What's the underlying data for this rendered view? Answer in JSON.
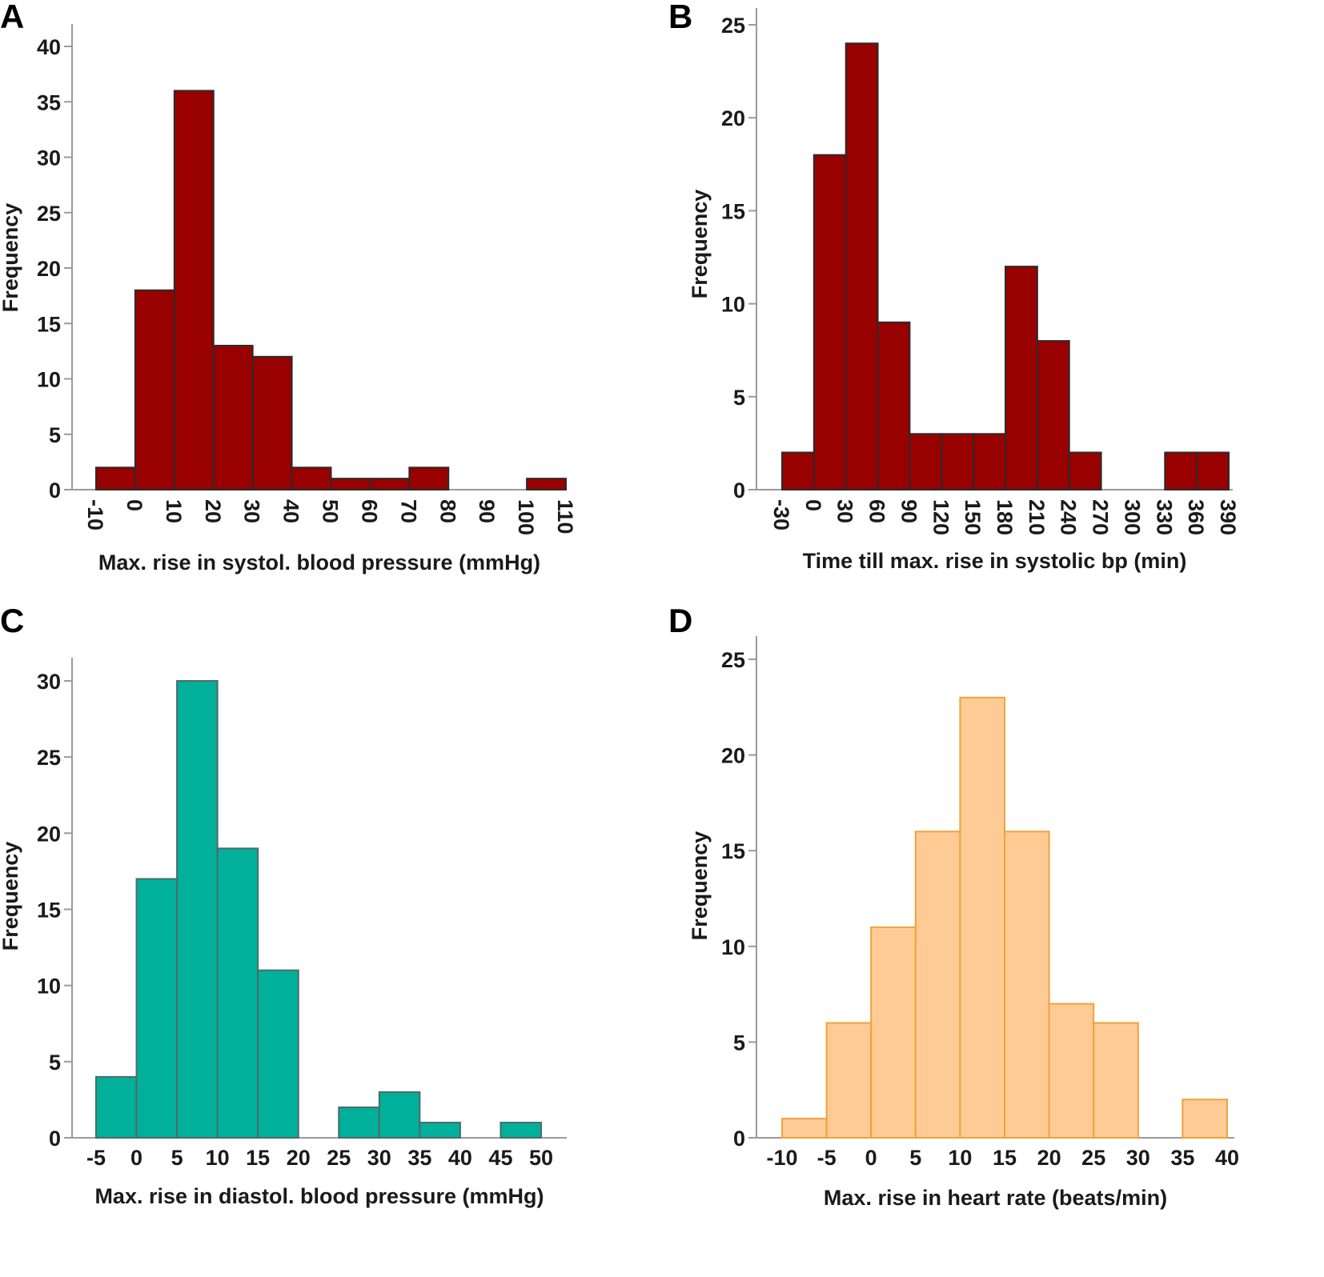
{
  "chart_data": [
    {
      "panel": "A",
      "type": "bar",
      "histogram": true,
      "xlabel": "Max. rise in systol. blood pressure (mmHg)",
      "ylabel": "Frequency",
      "x_ticks": [
        "-10",
        "0",
        "10",
        "20",
        "30",
        "40",
        "50",
        "60",
        "70",
        "80",
        "90",
        "100",
        "110"
      ],
      "x_tick_values": [
        -10,
        0,
        10,
        20,
        30,
        40,
        50,
        60,
        70,
        80,
        90,
        100,
        110
      ],
      "x_tick_rotated": true,
      "y_ticks": [
        0,
        5,
        10,
        15,
        20,
        25,
        30,
        35,
        40
      ],
      "xlim": [
        -10,
        110
      ],
      "ylim": [
        0,
        40
      ],
      "bins": [
        {
          "start": -10,
          "end": 0,
          "value": 2
        },
        {
          "start": 0,
          "end": 10,
          "value": 18
        },
        {
          "start": 10,
          "end": 20,
          "value": 36
        },
        {
          "start": 20,
          "end": 30,
          "value": 13
        },
        {
          "start": 30,
          "end": 40,
          "value": 12
        },
        {
          "start": 40,
          "end": 50,
          "value": 2
        },
        {
          "start": 50,
          "end": 60,
          "value": 1
        },
        {
          "start": 60,
          "end": 70,
          "value": 1
        },
        {
          "start": 70,
          "end": 80,
          "value": 2
        },
        {
          "start": 100,
          "end": 110,
          "value": 1
        }
      ],
      "fill": "#990000",
      "stroke": "#2b2b2b"
    },
    {
      "panel": "B",
      "type": "bar",
      "histogram": true,
      "xlabel": "Time till max. rise in systolic bp (min)",
      "ylabel": "Frequency",
      "x_ticks": [
        "-30",
        "0",
        "30",
        "60",
        "90",
        "120",
        "150",
        "180",
        "210",
        "240",
        "270",
        "300",
        "330",
        "360",
        "390"
      ],
      "x_tick_values": [
        -30,
        0,
        30,
        60,
        90,
        120,
        150,
        180,
        210,
        240,
        270,
        300,
        330,
        360,
        390
      ],
      "x_tick_rotated": true,
      "y_ticks": [
        0,
        5,
        10,
        15,
        20,
        25
      ],
      "xlim": [
        -30,
        390
      ],
      "ylim": [
        0,
        25
      ],
      "bins": [
        {
          "start": -30,
          "end": 0,
          "value": 2
        },
        {
          "start": 0,
          "end": 30,
          "value": 18
        },
        {
          "start": 30,
          "end": 60,
          "value": 24
        },
        {
          "start": 60,
          "end": 90,
          "value": 9
        },
        {
          "start": 90,
          "end": 120,
          "value": 3
        },
        {
          "start": 120,
          "end": 150,
          "value": 3
        },
        {
          "start": 150,
          "end": 180,
          "value": 3
        },
        {
          "start": 180,
          "end": 210,
          "value": 12
        },
        {
          "start": 210,
          "end": 240,
          "value": 8
        },
        {
          "start": 240,
          "end": 270,
          "value": 2
        },
        {
          "start": 330,
          "end": 360,
          "value": 2
        },
        {
          "start": 360,
          "end": 390,
          "value": 2
        }
      ],
      "fill": "#990000",
      "stroke": "#2b2b2b"
    },
    {
      "panel": "C",
      "type": "bar",
      "histogram": true,
      "xlabel": "Max. rise in diastol. blood pressure (mmHg)",
      "ylabel": "Frequency",
      "x_ticks": [
        "-5",
        "0",
        "5",
        "10",
        "15",
        "20",
        "25",
        "30",
        "35",
        "40",
        "45",
        "50"
      ],
      "x_tick_values": [
        -5,
        0,
        5,
        10,
        15,
        20,
        25,
        30,
        35,
        40,
        45,
        50
      ],
      "x_tick_rotated": false,
      "y_ticks": [
        0,
        5,
        10,
        15,
        20,
        25,
        30
      ],
      "xlim": [
        -5,
        50
      ],
      "ylim": [
        0,
        30
      ],
      "bins": [
        {
          "start": -5,
          "end": 0,
          "value": 4
        },
        {
          "start": 0,
          "end": 5,
          "value": 17
        },
        {
          "start": 5,
          "end": 10,
          "value": 30
        },
        {
          "start": 10,
          "end": 15,
          "value": 19
        },
        {
          "start": 15,
          "end": 20,
          "value": 11
        },
        {
          "start": 25,
          "end": 30,
          "value": 2
        },
        {
          "start": 30,
          "end": 35,
          "value": 3
        },
        {
          "start": 35,
          "end": 40,
          "value": 1
        },
        {
          "start": 45,
          "end": 50,
          "value": 1
        }
      ],
      "fill": "#00b09b",
      "stroke": "#4d6b68"
    },
    {
      "panel": "D",
      "type": "bar",
      "histogram": true,
      "xlabel": "Max. rise in heart rate (beats/min)",
      "ylabel": "Frequency",
      "x_ticks": [
        "-10",
        "-5",
        "0",
        "5",
        "10",
        "15",
        "20",
        "25",
        "30",
        "35",
        "40"
      ],
      "x_tick_values": [
        -10,
        -5,
        0,
        5,
        10,
        15,
        20,
        25,
        30,
        35,
        40
      ],
      "x_tick_rotated": false,
      "y_ticks": [
        0,
        5,
        10,
        15,
        20,
        25
      ],
      "xlim": [
        -10,
        40
      ],
      "ylim": [
        0,
        25
      ],
      "bins": [
        {
          "start": -10,
          "end": -5,
          "value": 1
        },
        {
          "start": -5,
          "end": 0,
          "value": 6
        },
        {
          "start": 0,
          "end": 5,
          "value": 11
        },
        {
          "start": 5,
          "end": 10,
          "value": 16
        },
        {
          "start": 10,
          "end": 15,
          "value": 23
        },
        {
          "start": 15,
          "end": 20,
          "value": 16
        },
        {
          "start": 20,
          "end": 25,
          "value": 7
        },
        {
          "start": 25,
          "end": 30,
          "value": 6
        },
        {
          "start": 35,
          "end": 40,
          "value": 2
        }
      ],
      "fill": "#fecb96",
      "stroke": "#f2a13a"
    }
  ]
}
